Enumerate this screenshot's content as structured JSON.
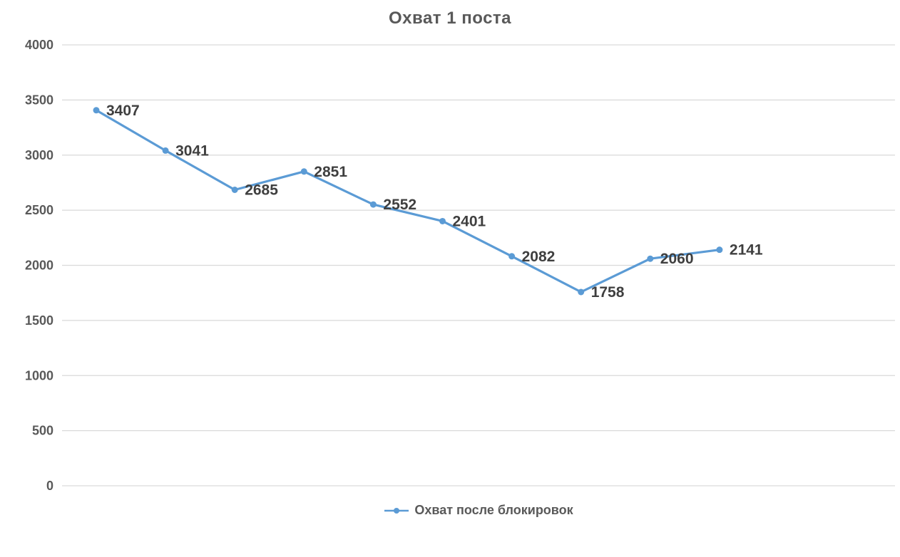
{
  "chart_data": {
    "type": "line",
    "title": "Охват 1 поста",
    "series": [
      {
        "name": "Охват после блокировок",
        "color": "#5B9BD5",
        "values": [
          3407,
          3041,
          2685,
          2851,
          2552,
          2401,
          2082,
          1758,
          2060,
          2141
        ]
      }
    ],
    "ylim": [
      0,
      4000
    ],
    "yticks": [
      0,
      500,
      1000,
      1500,
      2000,
      2500,
      3000,
      3500,
      4000
    ],
    "xlabel": "",
    "ylabel": "",
    "x_tick_labels_visible": false,
    "grid": "horizontal-only",
    "data_labels_visible": true,
    "legend_position": "bottom-center",
    "marker": "circle"
  },
  "colors": {
    "line": "#5B9BD5",
    "grid": "#D9D9D9",
    "title_text": "#595959",
    "axis_text": "#595959",
    "data_label_text": "#3F3F3F",
    "legend_text": "#595959",
    "background": "#FFFFFF"
  }
}
